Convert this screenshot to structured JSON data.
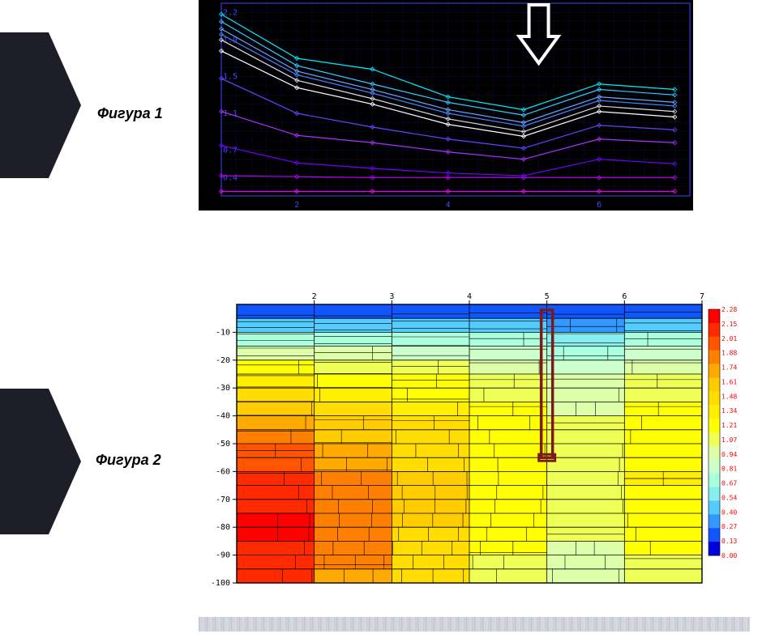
{
  "labels": {
    "fig1": "Фигура 1",
    "fig2": "Фигура 2"
  },
  "chart1": {
    "type": "line",
    "background": "#000000",
    "grid_color": "#0a0a3a",
    "axis_color": "#4444ff",
    "label_color": "#4444ff",
    "label_fontsize": 10,
    "xlim": [
      1,
      7.2
    ],
    "ylim": [
      0.2,
      2.3
    ],
    "ytick_labels": [
      "0.4",
      "0.7",
      "1.1",
      "1.5",
      "1.9",
      "2.2"
    ],
    "ytick_vals": [
      0.4,
      0.7,
      1.1,
      1.5,
      1.9,
      2.2
    ],
    "xtick_labels": [
      "2",
      "4",
      "6"
    ],
    "xtick_vals": [
      2,
      4,
      6
    ],
    "x_points": [
      1,
      2,
      3,
      4,
      5,
      6,
      7
    ],
    "series": [
      {
        "color": "#ff00ff",
        "y": [
          0.25,
          0.25,
          0.25,
          0.25,
          0.25,
          0.25,
          0.25
        ]
      },
      {
        "color": "#bb00ff",
        "y": [
          0.42,
          0.41,
          0.4,
          0.4,
          0.4,
          0.4,
          0.4
        ]
      },
      {
        "color": "#7700ff",
        "y": [
          0.75,
          0.56,
          0.5,
          0.45,
          0.42,
          0.6,
          0.55
        ]
      },
      {
        "color": "#aa33ff",
        "y": [
          1.12,
          0.86,
          0.78,
          0.68,
          0.6,
          0.82,
          0.78
        ]
      },
      {
        "color": "#6644ff",
        "y": [
          1.48,
          1.1,
          0.95,
          0.82,
          0.72,
          0.97,
          0.92
        ]
      },
      {
        "color": "#ffffff",
        "y": [
          1.78,
          1.38,
          1.2,
          0.98,
          0.85,
          1.12,
          1.06
        ]
      },
      {
        "color": "#dddddd",
        "y": [
          1.9,
          1.46,
          1.26,
          1.04,
          0.9,
          1.18,
          1.12
        ]
      },
      {
        "color": "#4488ff",
        "y": [
          1.96,
          1.52,
          1.32,
          1.1,
          0.96,
          1.24,
          1.18
        ]
      },
      {
        "color": "#66aaff",
        "y": [
          2.02,
          1.56,
          1.36,
          1.14,
          1.0,
          1.28,
          1.22
        ]
      },
      {
        "color": "#33ccff",
        "y": [
          2.1,
          1.62,
          1.42,
          1.22,
          1.08,
          1.36,
          1.3
        ]
      },
      {
        "color": "#00eeff",
        "y": [
          2.18,
          1.7,
          1.58,
          1.28,
          1.14,
          1.42,
          1.36
        ]
      }
    ],
    "arrow": {
      "x": 5.2,
      "color": "#ffffff"
    }
  },
  "chart2": {
    "type": "heatmap",
    "background": "#ffffff",
    "grid_color": "#000000",
    "label_color": "#000000",
    "label_fontsize": 10,
    "xlim": [
      1,
      7
    ],
    "ylim": [
      -100,
      0
    ],
    "xtick_vals": [
      2,
      3,
      4,
      5,
      6,
      7
    ],
    "ytick_vals": [
      -10,
      -20,
      -30,
      -40,
      -50,
      -60,
      -70,
      -80,
      -90,
      -100
    ],
    "colorbar": {
      "values": [
        2.28,
        2.15,
        2.01,
        1.88,
        1.74,
        1.61,
        1.48,
        1.34,
        1.21,
        1.07,
        0.94,
        0.81,
        0.67,
        0.54,
        0.4,
        0.27,
        0.13,
        0.0
      ],
      "colors": [
        "#ff0000",
        "#ff2a00",
        "#ff5500",
        "#ff8000",
        "#ffaa00",
        "#ffcc00",
        "#ffdd00",
        "#ffee00",
        "#ffff00",
        "#eeff55",
        "#ddffaa",
        "#ccffcc",
        "#aaffdd",
        "#88eeee",
        "#55ccff",
        "#3399ff",
        "#1155ff",
        "#0000dd"
      ],
      "font_color": "#ff0000",
      "fontsize": 8
    },
    "marker": {
      "x": 5,
      "y_top": -2,
      "y_bot": -55,
      "color": "#7a1a1a",
      "width": 14
    },
    "x_grid": [
      1,
      2,
      3,
      4,
      5,
      6,
      7
    ],
    "y_grid": [
      -5,
      -10,
      -15,
      -20,
      -25,
      -30,
      -35,
      -40,
      -45,
      -50,
      -55,
      -60,
      -65,
      -70,
      -75,
      -80,
      -85,
      -90,
      -95,
      -100
    ],
    "cells_x": [
      1,
      2,
      3,
      4,
      5,
      6
    ],
    "cells_y": [
      -2.5,
      -7.5,
      -12.5,
      -17.5,
      -22.5,
      -27.5,
      -32.5,
      -37.5,
      -42.5,
      -47.5,
      -52.5,
      -57.5,
      -62.5,
      -67.5,
      -72.5,
      -77.5,
      -82.5,
      -87.5,
      -92.5,
      -97.5
    ],
    "cell_values": [
      [
        0.05,
        0.05,
        0.08,
        0.1,
        0.1,
        0.12
      ],
      [
        0.35,
        0.3,
        0.35,
        0.35,
        0.25,
        0.3
      ],
      [
        0.65,
        0.6,
        0.58,
        0.55,
        0.5,
        0.55
      ],
      [
        0.9,
        0.82,
        0.78,
        0.72,
        0.65,
        0.72
      ],
      [
        1.1,
        1.0,
        0.95,
        0.85,
        0.75,
        0.85
      ],
      [
        1.28,
        1.15,
        1.08,
        0.95,
        0.82,
        0.95
      ],
      [
        1.42,
        1.28,
        1.18,
        1.02,
        0.88,
        1.02
      ],
      [
        1.55,
        1.4,
        1.28,
        1.08,
        0.92,
        1.08
      ],
      [
        1.68,
        1.5,
        1.35,
        1.12,
        0.94,
        1.12
      ],
      [
        1.78,
        1.58,
        1.4,
        1.15,
        0.96,
        1.15
      ],
      [
        1.88,
        1.65,
        1.44,
        1.16,
        0.97,
        1.18
      ],
      [
        1.96,
        1.72,
        1.47,
        1.17,
        0.97,
        1.2
      ],
      [
        2.04,
        1.77,
        1.49,
        1.17,
        0.97,
        1.21
      ],
      [
        2.1,
        1.8,
        1.5,
        1.16,
        0.96,
        1.2
      ],
      [
        2.14,
        1.82,
        1.5,
        1.15,
        0.96,
        1.19
      ],
      [
        2.16,
        1.82,
        1.49,
        1.13,
        0.95,
        1.17
      ],
      [
        2.16,
        1.81,
        1.47,
        1.11,
        0.94,
        1.14
      ],
      [
        2.14,
        1.79,
        1.44,
        1.08,
        0.92,
        1.1
      ],
      [
        2.1,
        1.75,
        1.4,
        1.05,
        0.9,
        1.06
      ],
      [
        2.04,
        1.7,
        1.35,
        1.02,
        0.88,
        1.02
      ]
    ]
  }
}
